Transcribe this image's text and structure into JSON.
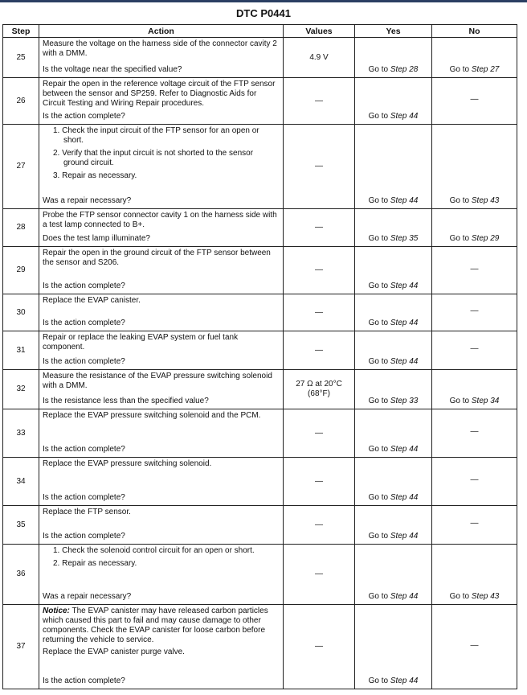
{
  "title": "DTC P0441",
  "headers": [
    "Step",
    "Action",
    "Values",
    "Yes",
    "No"
  ],
  "rows": [
    {
      "step": "25",
      "action": [
        {
          "type": "p",
          "text": "Measure the voltage on the harness side of the connector cavity 2 with a DMM."
        }
      ],
      "question": "Is the voltage near the specified value?",
      "value": "4.9 V",
      "yes": "Go to Step 28",
      "no": "Go to Step 27"
    },
    {
      "step": "26",
      "action": [
        {
          "type": "p",
          "text": "Repair the open in the reference voltage circuit of the FTP sensor between the sensor and SP259. Refer to Diagnostic Aids for Circuit Testing and Wiring Repair procedures."
        }
      ],
      "question": "Is the action complete?",
      "value": "—",
      "yes": "Go to Step 44",
      "no": "—"
    },
    {
      "step": "27",
      "action": [
        {
          "type": "li",
          "text": "1. Check the input circuit of the FTP sensor for an open or short."
        },
        {
          "type": "li",
          "text": "2. Verify that the input circuit is not shorted to the sensor ground circuit."
        },
        {
          "type": "li",
          "text": "3. Repair as necessary."
        }
      ],
      "question": "Was a repair necessary?",
      "value": "—",
      "yes": "Go to Step 44",
      "no": "Go to Step 43"
    },
    {
      "step": "28",
      "action": [
        {
          "type": "p",
          "text": "Probe the FTP sensor connector cavity 1 on the harness side with a test lamp connected to B+."
        }
      ],
      "question": "Does the test lamp illuminate?",
      "value": "—",
      "yes": "Go to Step 35",
      "no": "Go to Step 29"
    },
    {
      "step": "29",
      "action": [
        {
          "type": "p",
          "text": "Repair the open in the ground circuit of the FTP sensor between the sensor and S206."
        }
      ],
      "question": "Is the action complete?",
      "value": "—",
      "yes": "Go to Step 44",
      "no": "—"
    },
    {
      "step": "30",
      "action": [
        {
          "type": "p",
          "text": "Replace the EVAP canister."
        }
      ],
      "question": "Is the action complete?",
      "value": "—",
      "yes": "Go to Step 44",
      "no": "—"
    },
    {
      "step": "31",
      "action": [
        {
          "type": "p",
          "text": "Repair or replace the leaking EVAP system or fuel tank component."
        }
      ],
      "question": "Is the action complete?",
      "value": "—",
      "yes": "Go to Step 44",
      "no": "—"
    },
    {
      "step": "32",
      "action": [
        {
          "type": "p",
          "text": "Measure the resistance of the EVAP pressure switching solenoid with a DMM."
        }
      ],
      "question": "Is the resistance less than the specified value?",
      "value": "27 Ω at 20°C (68°F)",
      "yes": "Go to Step 33",
      "no": "Go to Step 34"
    },
    {
      "step": "33",
      "action": [
        {
          "type": "p",
          "text": "Replace the EVAP pressure switching solenoid and the PCM."
        }
      ],
      "question": "Is the action complete?",
      "value": "—",
      "yes": "Go to Step 44",
      "no": "—"
    },
    {
      "step": "34",
      "action": [
        {
          "type": "p",
          "text": "Replace the EVAP pressure switching solenoid."
        }
      ],
      "question": "Is the action complete?",
      "value": "—",
      "yes": "Go to Step 44",
      "no": "—"
    },
    {
      "step": "35",
      "action": [
        {
          "type": "p",
          "text": "Replace the FTP sensor."
        }
      ],
      "question": "Is the action complete?",
      "value": "—",
      "yes": "Go to Step 44",
      "no": "—"
    },
    {
      "step": "36",
      "action": [
        {
          "type": "li",
          "text": "1. Check the solenoid control circuit for an open or short."
        },
        {
          "type": "li",
          "text": "2. Repair as necessary."
        }
      ],
      "question": "Was a repair necessary?",
      "value": "—",
      "yes": "Go to Step 44",
      "no": "Go to Step 43"
    },
    {
      "step": "37",
      "action": [
        {
          "type": "notice",
          "label": "Notice:",
          "text": " The EVAP canister may have released carbon particles which caused this part to fail and may cause damage to other components. Check the EVAP canister for loose carbon before returning the vehicle to service."
        },
        {
          "type": "p",
          "text": "Replace the EVAP canister purge valve."
        }
      ],
      "question": "Is the action complete?",
      "value": "—",
      "yes": "Go to Step 44",
      "no": "—"
    }
  ]
}
